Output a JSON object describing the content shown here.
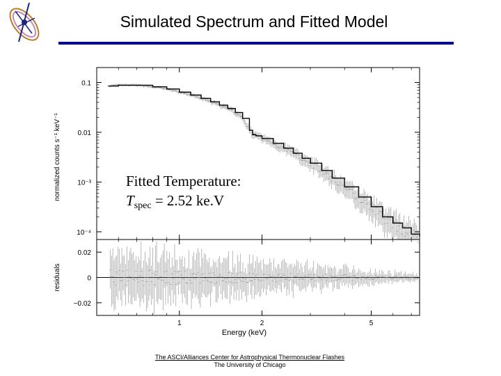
{
  "slide": {
    "title": "Simulated Spectrum and Fitted Model",
    "accent_color": "#00008b",
    "footer_line1": "The ASCI/Alliances Center for Astrophysical Thermonuclear Flashes",
    "footer_line2": "The University of Chicago"
  },
  "annotation": {
    "line1": "Fitted Temperature:",
    "var": "T",
    "sub": "spec",
    "value": " = 2.52 ke.V"
  },
  "chart_data": [
    {
      "type": "line",
      "panel": "spectrum",
      "xlabel": "Energy (keV)",
      "ylabel": "normalized counts s⁻¹ keV⁻¹",
      "xscale": "log",
      "yscale": "log",
      "xlim": [
        0.5,
        7.5
      ],
      "ylim": [
        7e-05,
        0.2
      ],
      "x_ticks": [
        "1",
        "2",
        "5"
      ],
      "y_ticks": [
        "0.1",
        "0.01",
        "10⁻³",
        "10⁻⁴"
      ],
      "series": [
        {
          "style": "step-model",
          "x": [
            0.55,
            0.6,
            0.7,
            0.8,
            0.9,
            1.0,
            1.1,
            1.2,
            1.3,
            1.4,
            1.5,
            1.6,
            1.7,
            1.8,
            1.85,
            1.9,
            2.0,
            2.2,
            2.4,
            2.6,
            2.8,
            3.0,
            3.3,
            3.6,
            4.0,
            4.5,
            5.0,
            5.5,
            6.0,
            6.5,
            7.0,
            7.5
          ],
          "y": [
            0.085,
            0.088,
            0.088,
            0.082,
            0.074,
            0.064,
            0.056,
            0.048,
            0.041,
            0.035,
            0.03,
            0.025,
            0.019,
            0.011,
            0.009,
            0.0085,
            0.0075,
            0.006,
            0.0048,
            0.0038,
            0.003,
            0.0024,
            0.0017,
            0.0012,
            0.0008,
            0.0005,
            0.00032,
            0.0002,
            0.00015,
            0.00012,
            9e-05,
            8e-05
          ]
        }
      ],
      "error_scatter": true
    },
    {
      "type": "scatter",
      "panel": "residuals",
      "xlabel": "Energy (keV)",
      "ylabel": "residuals",
      "xscale": "log",
      "xlim": [
        0.5,
        7.5
      ],
      "ylim": [
        -0.03,
        0.03
      ],
      "y_ticks": [
        "0.02",
        "0",
        "−0.02"
      ],
      "reference_line": 0
    }
  ]
}
